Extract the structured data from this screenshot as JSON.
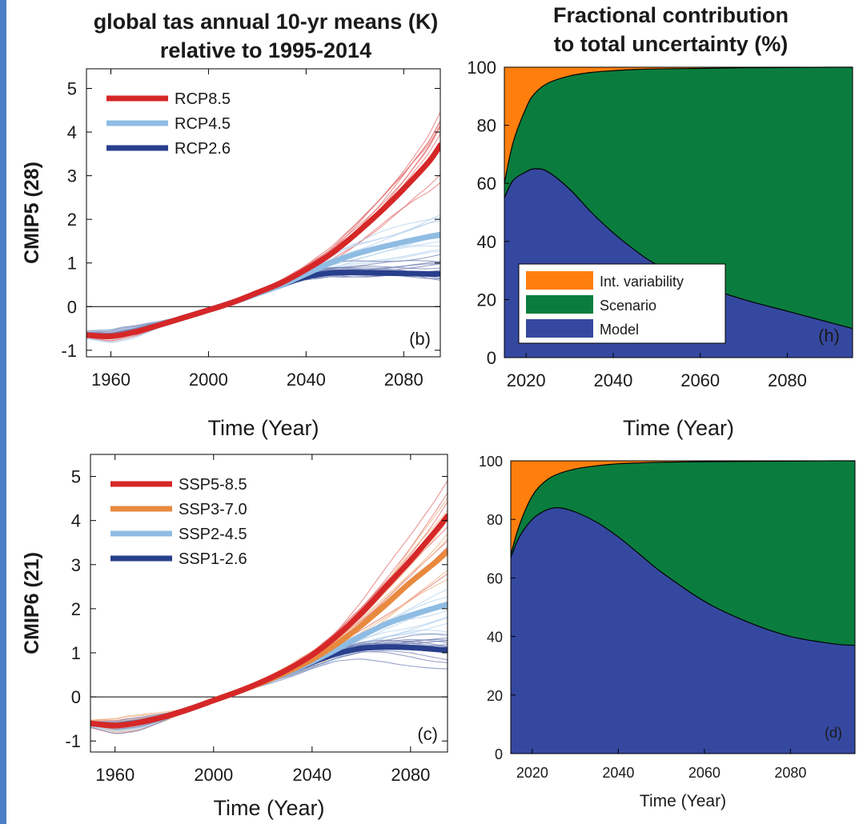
{
  "titles": {
    "left_line1": "global tas annual 10-yr means (K)",
    "left_line2": "relative to 1995-2014",
    "right_line1": "Fractional contribution",
    "right_line2": "to total uncertainty (%)"
  },
  "colors": {
    "rcp85": "#d62728",
    "rcp45": "#8fbce3",
    "rcp26": "#283f8c",
    "ssp370": "#e8893f",
    "int_variability": "#ff7f0e",
    "scenario": "#0a7d3e",
    "model": "#3548a0",
    "side_bar": "#4a7ec5"
  },
  "chart_data": [
    {
      "id": "b",
      "type": "line",
      "panel_label": "(b)",
      "ylabel": "CMIP5 (28)",
      "xlabel": "Time (Year)",
      "xlim": [
        1950,
        2095
      ],
      "ylim": [
        -1.15,
        5.45
      ],
      "xticks": [
        1960,
        2000,
        2040,
        2080
      ],
      "yticks": [
        -1,
        0,
        1,
        2,
        3,
        4,
        5
      ],
      "ytick_labels": [
        "-1",
        "0",
        "1",
        "2",
        "3",
        "4",
        "5"
      ],
      "legend_position": "top-left",
      "series": [
        {
          "name": "RCP8.5",
          "key": "rcp85",
          "x": [
            1950,
            1960,
            1970,
            1980,
            1990,
            2000,
            2010,
            2020,
            2030,
            2040,
            2050,
            2060,
            2070,
            2080,
            2090,
            2095
          ],
          "y": [
            -0.65,
            -0.68,
            -0.58,
            -0.42,
            -0.25,
            -0.08,
            0.1,
            0.32,
            0.55,
            0.85,
            1.2,
            1.65,
            2.15,
            2.7,
            3.3,
            3.7
          ]
        },
        {
          "name": "RCP4.5",
          "key": "rcp45",
          "x": [
            1950,
            1960,
            1970,
            1980,
            1990,
            2000,
            2010,
            2020,
            2030,
            2040,
            2050,
            2060,
            2070,
            2080,
            2090,
            2095
          ],
          "y": [
            -0.65,
            -0.68,
            -0.58,
            -0.42,
            -0.25,
            -0.08,
            0.1,
            0.3,
            0.5,
            0.75,
            1.0,
            1.2,
            1.35,
            1.48,
            1.6,
            1.65
          ]
        },
        {
          "name": "RCP2.6",
          "key": "rcp26",
          "x": [
            1950,
            1960,
            1970,
            1980,
            1990,
            2000,
            2010,
            2020,
            2030,
            2040,
            2050,
            2060,
            2070,
            2080,
            2090,
            2095
          ],
          "y": [
            -0.65,
            -0.68,
            -0.58,
            -0.42,
            -0.25,
            -0.08,
            0.1,
            0.3,
            0.5,
            0.68,
            0.77,
            0.78,
            0.77,
            0.76,
            0.75,
            0.75
          ]
        }
      ]
    },
    {
      "id": "h",
      "type": "area",
      "panel_label": "(h)",
      "xlabel": "Time (Year)",
      "xlim": [
        2015,
        2095
      ],
      "ylim": [
        0,
        100
      ],
      "xticks": [
        2020,
        2040,
        2060,
        2080
      ],
      "yticks": [
        0,
        20,
        40,
        60,
        80,
        100
      ],
      "legend_position": "bottom-left",
      "legend_order": [
        "int_variability",
        "scenario",
        "model"
      ],
      "series": [
        {
          "name": "Int. variability",
          "key": "int_variability"
        },
        {
          "name": "Scenario",
          "key": "scenario"
        },
        {
          "name": "Model",
          "key": "model"
        }
      ],
      "x": [
        2015,
        2017,
        2020,
        2022,
        2025,
        2030,
        2035,
        2040,
        2045,
        2050,
        2060,
        2070,
        2080,
        2090,
        2095
      ],
      "model_top": [
        55,
        61,
        64,
        65,
        64,
        58,
        50,
        43,
        37,
        32,
        25,
        20,
        16,
        12,
        10
      ],
      "scenario_top": [
        60,
        74,
        86,
        91,
        94.5,
        97,
        98.2,
        98.8,
        99.2,
        99.4,
        99.6,
        99.8,
        99.9,
        100,
        100
      ]
    },
    {
      "id": "c",
      "type": "line",
      "panel_label": "(c)",
      "ylabel": "CMIP6 (21)",
      "xlabel": "Time (Year)",
      "xlim": [
        1950,
        2095
      ],
      "ylim": [
        -1.25,
        5.5
      ],
      "xticks": [
        1960,
        2000,
        2040,
        2080
      ],
      "yticks": [
        -1,
        0,
        1,
        2,
        3,
        4,
        5
      ],
      "ytick_labels": [
        "-1",
        "0",
        "1",
        "2",
        "3",
        "4",
        "5"
      ],
      "legend_position": "top-left",
      "series": [
        {
          "name": "SSP5-8.5",
          "key": "rcp85",
          "x": [
            1950,
            1960,
            1970,
            1980,
            1990,
            2000,
            2010,
            2020,
            2030,
            2040,
            2050,
            2060,
            2070,
            2080,
            2090,
            2095
          ],
          "y": [
            -0.6,
            -0.65,
            -0.58,
            -0.45,
            -0.28,
            -0.08,
            0.12,
            0.35,
            0.62,
            0.95,
            1.38,
            1.9,
            2.5,
            3.1,
            3.75,
            4.1
          ]
        },
        {
          "name": "SSP3-7.0",
          "key": "ssp370",
          "x": [
            1950,
            1960,
            1970,
            1980,
            1990,
            2000,
            2010,
            2020,
            2030,
            2040,
            2050,
            2060,
            2070,
            2080,
            2090,
            2095
          ],
          "y": [
            -0.6,
            -0.65,
            -0.58,
            -0.45,
            -0.28,
            -0.08,
            0.12,
            0.33,
            0.57,
            0.85,
            1.2,
            1.62,
            2.1,
            2.6,
            3.05,
            3.3
          ]
        },
        {
          "name": "SSP2-4.5",
          "key": "rcp45",
          "x": [
            1950,
            1960,
            1970,
            1980,
            1990,
            2000,
            2010,
            2020,
            2030,
            2040,
            2050,
            2060,
            2070,
            2080,
            2090,
            2095
          ],
          "y": [
            -0.6,
            -0.65,
            -0.58,
            -0.45,
            -0.28,
            -0.08,
            0.12,
            0.33,
            0.55,
            0.8,
            1.08,
            1.38,
            1.65,
            1.85,
            2.02,
            2.1
          ]
        },
        {
          "name": "SSP1-2.6",
          "key": "rcp26",
          "x": [
            1950,
            1960,
            1970,
            1980,
            1990,
            2000,
            2010,
            2020,
            2030,
            2040,
            2050,
            2060,
            2070,
            2080,
            2090,
            2095
          ],
          "y": [
            -0.6,
            -0.65,
            -0.58,
            -0.45,
            -0.28,
            -0.08,
            0.12,
            0.33,
            0.55,
            0.78,
            0.98,
            1.1,
            1.13,
            1.12,
            1.08,
            1.06
          ]
        }
      ]
    },
    {
      "id": "d",
      "type": "area",
      "panel_label": "(d)",
      "xlabel": "Time (Year)",
      "xlim": [
        2015,
        2095
      ],
      "ylim": [
        0,
        100
      ],
      "xticks": [
        2020,
        2040,
        2060,
        2080
      ],
      "yticks": [
        0,
        20,
        40,
        60,
        80,
        100
      ],
      "series": [
        {
          "name": "Int. variability",
          "key": "int_variability"
        },
        {
          "name": "Scenario",
          "key": "scenario"
        },
        {
          "name": "Model",
          "key": "model"
        }
      ],
      "x": [
        2015,
        2017,
        2020,
        2023,
        2026,
        2030,
        2035,
        2040,
        2045,
        2050,
        2060,
        2070,
        2080,
        2090,
        2095
      ],
      "model_top": [
        67,
        74,
        80,
        83,
        84,
        82.5,
        79,
        74,
        68,
        62,
        52,
        45,
        40,
        37.5,
        37
      ],
      "scenario_top": [
        68,
        78,
        88,
        93,
        95.5,
        97.2,
        98.3,
        99,
        99.3,
        99.5,
        99.7,
        99.8,
        99.9,
        100,
        100
      ]
    }
  ]
}
